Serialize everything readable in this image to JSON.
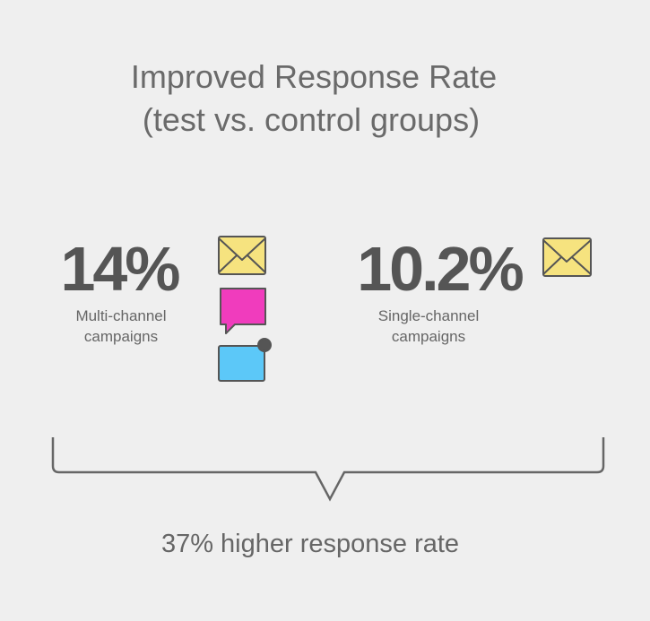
{
  "title": [
    "Improved Response Rate",
    "(test vs. control groups)"
  ],
  "stats": [
    {
      "value": "14%",
      "label": [
        "Multi-channel",
        "campaigns"
      ]
    },
    {
      "value": "10.2%",
      "label": [
        "Single-channel",
        "campaigns"
      ]
    }
  ],
  "summary": "37% higher response rate"
}
